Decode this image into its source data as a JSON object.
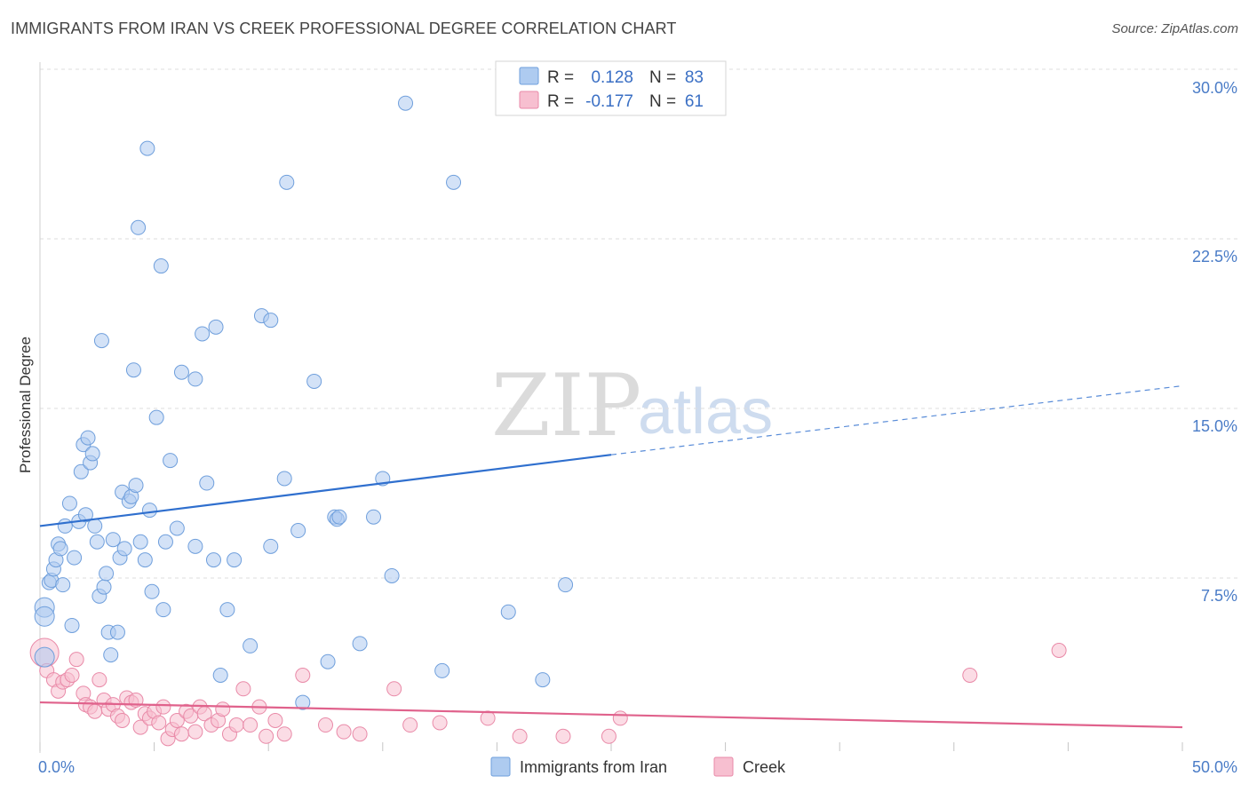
{
  "title": "IMMIGRANTS FROM IRAN VS CREEK PROFESSIONAL DEGREE CORRELATION CHART",
  "source": "Source: ZipAtlas.com",
  "watermark": {
    "zip": "ZIP",
    "atlas": "atlas"
  },
  "colors": {
    "iran_fill": "#aecbf0",
    "iran_stroke": "#6f9fdc",
    "iran_line": "#2f6fce",
    "creek_fill": "#f7bfd0",
    "creek_stroke": "#e98aa8",
    "creek_line": "#e0628c",
    "grid": "#dddddd",
    "tick_text": "#4a7cc7"
  },
  "legend": {
    "rows": [
      {
        "r_label": "R =",
        "r_value": "0.128",
        "n_label": "N =",
        "n_value": "83"
      },
      {
        "r_label": "R =",
        "r_value": "-0.177",
        "n_label": "N =",
        "n_value": "61"
      }
    ]
  },
  "chart_data": {
    "type": "scatter",
    "title": "IMMIGRANTS FROM IRAN VS CREEK PROFESSIONAL DEGREE CORRELATION CHART",
    "xlabel": "",
    "ylabel": "Professional Degree",
    "xlim": [
      0,
      50
    ],
    "ylim": [
      0,
      30
    ],
    "x_tick_labels": [
      "0.0%",
      "50.0%"
    ],
    "y_ticks": [
      7.5,
      15.0,
      22.5,
      30.0
    ],
    "y_tick_labels": [
      "7.5%",
      "15.0%",
      "22.5%",
      "30.0%"
    ],
    "grid": true,
    "legend_position": "top-center",
    "series": [
      {
        "name": "Immigrants from Iran",
        "r": 0.128,
        "n": 83,
        "trend": {
          "x0": 0,
          "y0": 9.8,
          "x1": 25,
          "y1": 12.95,
          "x_dash_end": 50,
          "y_dash_end": 16.0
        },
        "points": [
          [
            0.2,
            6.2
          ],
          [
            0.2,
            5.8
          ],
          [
            0.2,
            4.0
          ],
          [
            0.4,
            7.3
          ],
          [
            0.5,
            7.4
          ],
          [
            0.6,
            7.9
          ],
          [
            0.7,
            8.3
          ],
          [
            0.8,
            9.0
          ],
          [
            0.9,
            8.8
          ],
          [
            1.0,
            7.2
          ],
          [
            1.1,
            9.8
          ],
          [
            1.3,
            10.8
          ],
          [
            1.4,
            5.4
          ],
          [
            1.5,
            8.4
          ],
          [
            1.7,
            10.0
          ],
          [
            1.8,
            12.2
          ],
          [
            1.9,
            13.4
          ],
          [
            2.0,
            10.3
          ],
          [
            2.1,
            13.7
          ],
          [
            2.2,
            12.6
          ],
          [
            2.3,
            13.0
          ],
          [
            2.4,
            9.8
          ],
          [
            2.5,
            9.1
          ],
          [
            2.6,
            6.7
          ],
          [
            2.7,
            18.0
          ],
          [
            2.8,
            7.1
          ],
          [
            2.9,
            7.7
          ],
          [
            3.0,
            5.1
          ],
          [
            3.1,
            4.1
          ],
          [
            3.2,
            9.2
          ],
          [
            3.4,
            5.1
          ],
          [
            3.5,
            8.4
          ],
          [
            3.6,
            11.3
          ],
          [
            3.7,
            8.8
          ],
          [
            3.9,
            10.9
          ],
          [
            4.0,
            11.1
          ],
          [
            4.1,
            16.7
          ],
          [
            4.2,
            11.6
          ],
          [
            4.3,
            23.0
          ],
          [
            4.4,
            9.1
          ],
          [
            4.6,
            8.3
          ],
          [
            4.7,
            26.5
          ],
          [
            4.8,
            10.5
          ],
          [
            4.9,
            6.9
          ],
          [
            5.1,
            14.6
          ],
          [
            5.3,
            21.3
          ],
          [
            5.4,
            6.1
          ],
          [
            5.5,
            9.1
          ],
          [
            5.7,
            12.7
          ],
          [
            6.0,
            9.7
          ],
          [
            6.2,
            16.6
          ],
          [
            6.8,
            16.3
          ],
          [
            6.8,
            8.9
          ],
          [
            7.1,
            18.3
          ],
          [
            7.3,
            11.7
          ],
          [
            7.6,
            8.3
          ],
          [
            7.7,
            18.6
          ],
          [
            8.2,
            6.1
          ],
          [
            8.5,
            8.3
          ],
          [
            9.2,
            4.5
          ],
          [
            9.7,
            19.1
          ],
          [
            10.1,
            18.9
          ],
          [
            10.1,
            8.9
          ],
          [
            10.7,
            11.9
          ],
          [
            10.8,
            25.0
          ],
          [
            11.3,
            9.6
          ],
          [
            11.5,
            2.0
          ],
          [
            12.0,
            16.2
          ],
          [
            12.9,
            10.2
          ],
          [
            13.0,
            10.1
          ],
          [
            13.1,
            10.2
          ],
          [
            14.0,
            4.6
          ],
          [
            14.6,
            10.2
          ],
          [
            15.0,
            11.9
          ],
          [
            15.4,
            7.6
          ],
          [
            16.0,
            28.5
          ],
          [
            17.6,
            3.4
          ],
          [
            18.1,
            25.0
          ],
          [
            20.5,
            6.0
          ],
          [
            22.0,
            3.0
          ],
          [
            23.0,
            7.2
          ],
          [
            7.9,
            3.2
          ],
          [
            12.6,
            3.8
          ]
        ]
      },
      {
        "name": "Creek",
        "r": -0.177,
        "n": 61,
        "trend": {
          "x0": 0,
          "y0": 2.0,
          "x1": 50,
          "y1": 0.9
        },
        "points": [
          [
            0.2,
            4.2
          ],
          [
            0.3,
            3.4
          ],
          [
            0.6,
            3.0
          ],
          [
            0.8,
            2.5
          ],
          [
            1.0,
            2.9
          ],
          [
            1.2,
            3.0
          ],
          [
            1.4,
            3.2
          ],
          [
            1.6,
            3.9
          ],
          [
            1.9,
            2.4
          ],
          [
            2.0,
            1.9
          ],
          [
            2.2,
            1.8
          ],
          [
            2.4,
            1.6
          ],
          [
            2.6,
            3.0
          ],
          [
            2.8,
            2.1
          ],
          [
            3.0,
            1.7
          ],
          [
            3.2,
            1.9
          ],
          [
            3.4,
            1.4
          ],
          [
            3.6,
            1.2
          ],
          [
            3.8,
            2.2
          ],
          [
            4.0,
            2.0
          ],
          [
            4.2,
            2.1
          ],
          [
            4.4,
            0.9
          ],
          [
            4.6,
            1.5
          ],
          [
            4.8,
            1.3
          ],
          [
            5.0,
            1.6
          ],
          [
            5.2,
            1.1
          ],
          [
            5.4,
            1.8
          ],
          [
            5.6,
            0.4
          ],
          [
            5.8,
            0.8
          ],
          [
            6.0,
            1.2
          ],
          [
            6.2,
            0.6
          ],
          [
            6.4,
            1.6
          ],
          [
            6.6,
            1.4
          ],
          [
            6.8,
            0.7
          ],
          [
            7.0,
            1.8
          ],
          [
            7.2,
            1.5
          ],
          [
            7.5,
            1.0
          ],
          [
            7.8,
            1.2
          ],
          [
            8.0,
            1.7
          ],
          [
            8.3,
            0.6
          ],
          [
            8.6,
            1.0
          ],
          [
            8.9,
            2.6
          ],
          [
            9.2,
            1.0
          ],
          [
            9.6,
            1.8
          ],
          [
            9.9,
            0.5
          ],
          [
            10.3,
            1.2
          ],
          [
            10.7,
            0.6
          ],
          [
            11.5,
            3.2
          ],
          [
            12.5,
            1.0
          ],
          [
            13.3,
            0.7
          ],
          [
            14.0,
            0.6
          ],
          [
            15.5,
            2.6
          ],
          [
            16.2,
            1.0
          ],
          [
            17.5,
            1.1
          ],
          [
            19.6,
            1.3
          ],
          [
            21.0,
            0.5
          ],
          [
            22.9,
            0.5
          ],
          [
            24.9,
            0.5
          ],
          [
            25.4,
            1.3
          ],
          [
            40.7,
            3.2
          ],
          [
            44.6,
            4.3
          ]
        ]
      }
    ]
  },
  "bottom_legend": [
    {
      "label": "Immigrants from Iran"
    },
    {
      "label": "Creek"
    }
  ]
}
